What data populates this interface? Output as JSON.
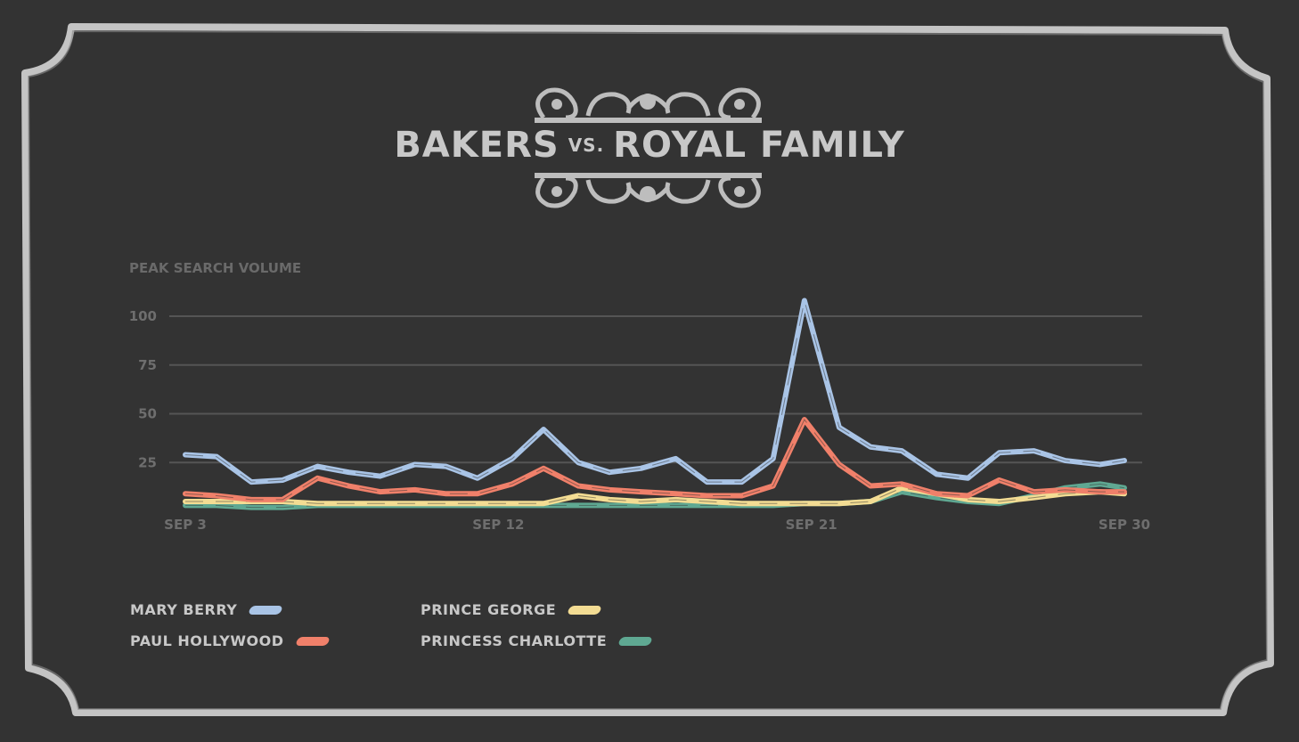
{
  "title": {
    "part1": "BAKERS",
    "vs": "VS.",
    "part2": "ROYAL FAMILY"
  },
  "colors": {
    "background": "#333333",
    "frame": "#c4c4c4",
    "grid": "#555555",
    "axis_text": "#6e6e6e",
    "mary_berry": "#a9c4e6",
    "paul_hollywood": "#f0806a",
    "prince_george": "#f3dc93",
    "princess_charlotte": "#5fa892"
  },
  "chart_data": {
    "type": "line",
    "ylabel": "PEAK SEARCH VOLUME",
    "yticks": [
      25,
      50,
      75,
      100
    ],
    "ylim": [
      0,
      100
    ],
    "xlim": [
      3,
      30
    ],
    "x_tick_values": [
      3,
      12,
      21,
      30
    ],
    "x_tick_labels": [
      "SEP 3",
      "SEP 12",
      "SEP 21",
      "SEP 30"
    ],
    "grid": true,
    "x": [
      3,
      3.9,
      4.9,
      5.8,
      6.8,
      7.7,
      8.6,
      9.6,
      10.5,
      11.4,
      12.4,
      13.3,
      14.3,
      15.2,
      16.1,
      17.1,
      18.0,
      19.0,
      19.9,
      20.8,
      21.8,
      22.7,
      23.6,
      24.6,
      25.5,
      26.4,
      27.4,
      28.3,
      29.3,
      30
    ],
    "series": [
      {
        "name": "MARY BERRY",
        "color": "#a9c4e6",
        "values": [
          29,
          28,
          15,
          16,
          23,
          20,
          18,
          24,
          23,
          17,
          27,
          42,
          25,
          20,
          22,
          27,
          15,
          15,
          27,
          108,
          43,
          33,
          31,
          19,
          17,
          30,
          31,
          26,
          24,
          26
        ]
      },
      {
        "name": "PAUL HOLLYWOOD",
        "color": "#f0806a",
        "values": [
          9,
          8,
          6,
          6,
          17,
          13,
          10,
          11,
          9,
          9,
          14,
          22,
          13,
          11,
          10,
          9,
          8,
          8,
          13,
          47,
          24,
          13,
          14,
          9,
          8,
          16,
          10,
          11,
          10,
          10
        ]
      },
      {
        "name": "PRINCE GEORGE",
        "color": "#f3dc93",
        "values": [
          5,
          5,
          5,
          5,
          4,
          4,
          4,
          4,
          4,
          4,
          4,
          4,
          8,
          6,
          5,
          6,
          5,
          4,
          4,
          4,
          4,
          5,
          12,
          9,
          6,
          5,
          7,
          9,
          10,
          9
        ]
      },
      {
        "name": "PRINCESS CHARLOTTE",
        "color": "#5fa892",
        "values": [
          3,
          3,
          2,
          2,
          3,
          3,
          3,
          3,
          3,
          3,
          3,
          3,
          3,
          3,
          3,
          3,
          3,
          3,
          3,
          4,
          4,
          5,
          10,
          7,
          5,
          4,
          8,
          12,
          14,
          12
        ]
      }
    ],
    "legend_placement": "bottom-left"
  }
}
